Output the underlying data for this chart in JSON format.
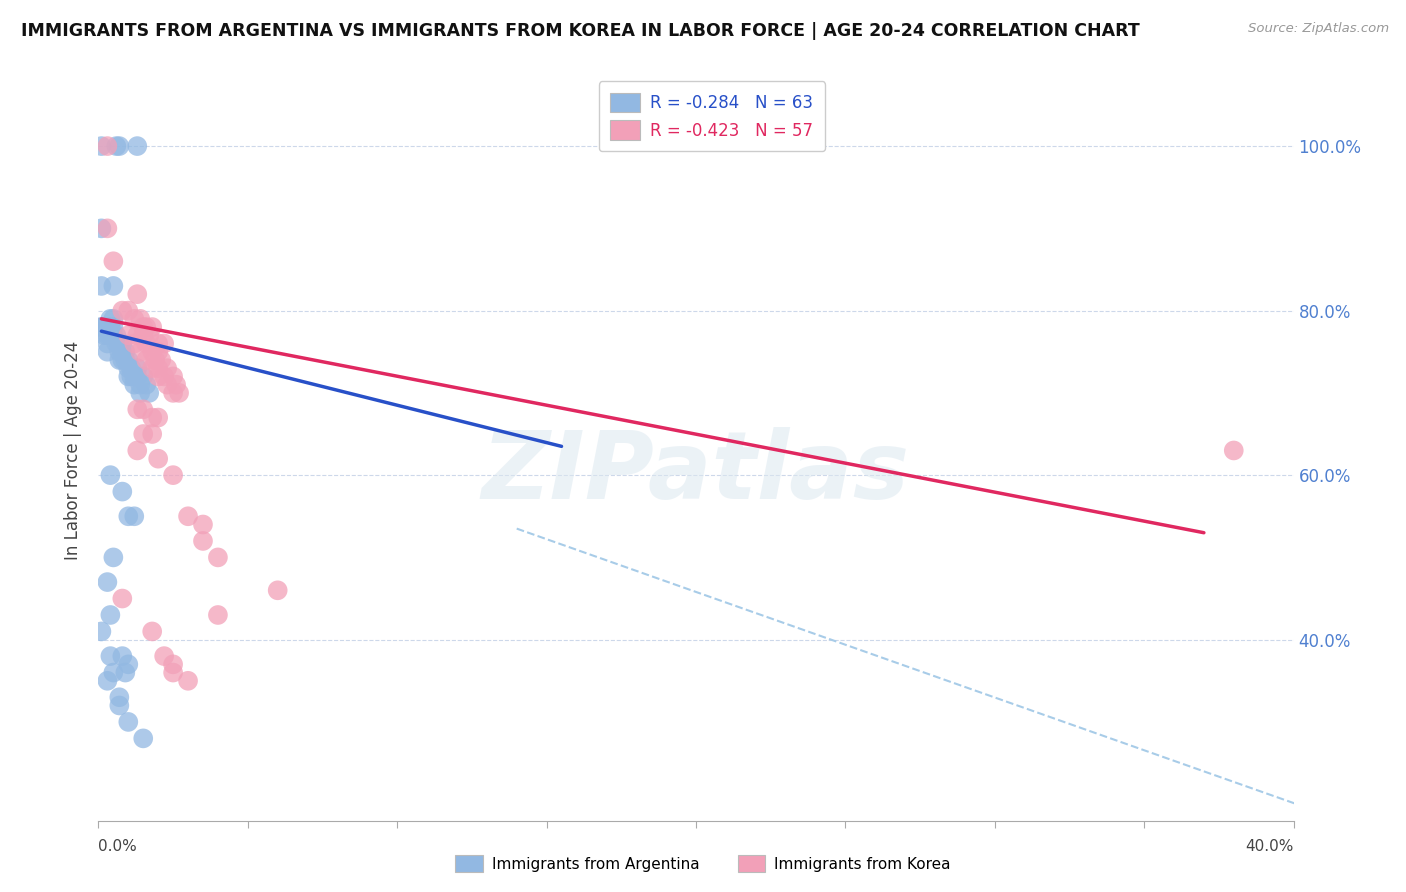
{
  "title": "IMMIGRANTS FROM ARGENTINA VS IMMIGRANTS FROM KOREA IN LABOR FORCE | AGE 20-24 CORRELATION CHART",
  "source": "Source: ZipAtlas.com",
  "ylabel": "In Labor Force | Age 20-24",
  "right_ytick_vals": [
    1.0,
    0.8,
    0.6,
    0.4
  ],
  "right_ytick_labels": [
    "100.0%",
    "80.0%",
    "60.0%",
    "40.0%"
  ],
  "xlim": [
    0.0,
    0.4
  ],
  "ylim": [
    0.18,
    1.08
  ],
  "legend_r_argentina": "-0.284",
  "legend_n_argentina": "63",
  "legend_r_korea": "-0.423",
  "legend_n_korea": "57",
  "argentina_color": "#92b8e2",
  "korea_color": "#f2a0b8",
  "argentina_line_color": "#2850c8",
  "korea_line_color": "#e02860",
  "dashed_line_color": "#a8cce8",
  "argentina_scatter": [
    [
      0.001,
      1.0
    ],
    [
      0.006,
      1.0
    ],
    [
      0.007,
      1.0
    ],
    [
      0.013,
      1.0
    ],
    [
      0.001,
      0.9
    ],
    [
      0.001,
      0.83
    ],
    [
      0.001,
      0.78
    ],
    [
      0.001,
      0.78
    ],
    [
      0.002,
      0.78
    ],
    [
      0.002,
      0.77
    ],
    [
      0.003,
      0.78
    ],
    [
      0.003,
      0.77
    ],
    [
      0.003,
      0.76
    ],
    [
      0.003,
      0.75
    ],
    [
      0.004,
      0.79
    ],
    [
      0.004,
      0.78
    ],
    [
      0.004,
      0.77
    ],
    [
      0.005,
      0.83
    ],
    [
      0.005,
      0.79
    ],
    [
      0.005,
      0.78
    ],
    [
      0.005,
      0.77
    ],
    [
      0.006,
      0.77
    ],
    [
      0.006,
      0.76
    ],
    [
      0.007,
      0.76
    ],
    [
      0.007,
      0.75
    ],
    [
      0.007,
      0.74
    ],
    [
      0.008,
      0.76
    ],
    [
      0.008,
      0.75
    ],
    [
      0.008,
      0.74
    ],
    [
      0.009,
      0.75
    ],
    [
      0.009,
      0.74
    ],
    [
      0.01,
      0.74
    ],
    [
      0.01,
      0.73
    ],
    [
      0.01,
      0.72
    ],
    [
      0.011,
      0.73
    ],
    [
      0.011,
      0.72
    ],
    [
      0.012,
      0.72
    ],
    [
      0.012,
      0.71
    ],
    [
      0.013,
      0.73
    ],
    [
      0.013,
      0.72
    ],
    [
      0.014,
      0.71
    ],
    [
      0.014,
      0.7
    ],
    [
      0.015,
      0.72
    ],
    [
      0.016,
      0.71
    ],
    [
      0.017,
      0.7
    ],
    [
      0.004,
      0.6
    ],
    [
      0.008,
      0.58
    ],
    [
      0.01,
      0.55
    ],
    [
      0.012,
      0.55
    ],
    [
      0.005,
      0.5
    ],
    [
      0.003,
      0.47
    ],
    [
      0.004,
      0.43
    ],
    [
      0.001,
      0.41
    ],
    [
      0.004,
      0.38
    ],
    [
      0.008,
      0.38
    ],
    [
      0.01,
      0.37
    ],
    [
      0.005,
      0.36
    ],
    [
      0.009,
      0.36
    ],
    [
      0.003,
      0.35
    ],
    [
      0.007,
      0.33
    ],
    [
      0.007,
      0.32
    ],
    [
      0.01,
      0.3
    ],
    [
      0.015,
      0.28
    ]
  ],
  "korea_scatter": [
    [
      0.003,
      1.0
    ],
    [
      0.003,
      0.9
    ],
    [
      0.005,
      0.86
    ],
    [
      0.013,
      0.82
    ],
    [
      0.008,
      0.8
    ],
    [
      0.01,
      0.8
    ],
    [
      0.012,
      0.79
    ],
    [
      0.014,
      0.79
    ],
    [
      0.015,
      0.78
    ],
    [
      0.016,
      0.78
    ],
    [
      0.018,
      0.78
    ],
    [
      0.01,
      0.77
    ],
    [
      0.013,
      0.77
    ],
    [
      0.015,
      0.77
    ],
    [
      0.017,
      0.77
    ],
    [
      0.012,
      0.76
    ],
    [
      0.016,
      0.76
    ],
    [
      0.02,
      0.76
    ],
    [
      0.022,
      0.76
    ],
    [
      0.014,
      0.75
    ],
    [
      0.018,
      0.75
    ],
    [
      0.02,
      0.75
    ],
    [
      0.016,
      0.74
    ],
    [
      0.019,
      0.74
    ],
    [
      0.021,
      0.74
    ],
    [
      0.018,
      0.73
    ],
    [
      0.02,
      0.73
    ],
    [
      0.023,
      0.73
    ],
    [
      0.02,
      0.72
    ],
    [
      0.022,
      0.72
    ],
    [
      0.025,
      0.72
    ],
    [
      0.023,
      0.71
    ],
    [
      0.026,
      0.71
    ],
    [
      0.025,
      0.7
    ],
    [
      0.027,
      0.7
    ],
    [
      0.013,
      0.68
    ],
    [
      0.015,
      0.68
    ],
    [
      0.018,
      0.67
    ],
    [
      0.02,
      0.67
    ],
    [
      0.015,
      0.65
    ],
    [
      0.018,
      0.65
    ],
    [
      0.013,
      0.63
    ],
    [
      0.02,
      0.62
    ],
    [
      0.025,
      0.6
    ],
    [
      0.03,
      0.55
    ],
    [
      0.035,
      0.54
    ],
    [
      0.035,
      0.52
    ],
    [
      0.04,
      0.5
    ],
    [
      0.06,
      0.46
    ],
    [
      0.008,
      0.45
    ],
    [
      0.04,
      0.43
    ],
    [
      0.018,
      0.41
    ],
    [
      0.022,
      0.38
    ],
    [
      0.38,
      0.63
    ],
    [
      0.025,
      0.37
    ],
    [
      0.025,
      0.36
    ],
    [
      0.03,
      0.35
    ]
  ],
  "argentina_trend_x": [
    0.001,
    0.155
  ],
  "argentina_trend_y": [
    0.775,
    0.635
  ],
  "korea_trend_x": [
    0.001,
    0.37
  ],
  "korea_trend_y": [
    0.79,
    0.53
  ],
  "dashed_trend_x": [
    0.14,
    0.405
  ],
  "dashed_trend_y": [
    0.535,
    0.195
  ],
  "watermark_text": "ZIPatlas",
  "background_color": "#ffffff",
  "grid_color": "#c8d4e8",
  "bottom_legend_labels": [
    "Immigrants from Argentina",
    "Immigrants from Korea"
  ]
}
